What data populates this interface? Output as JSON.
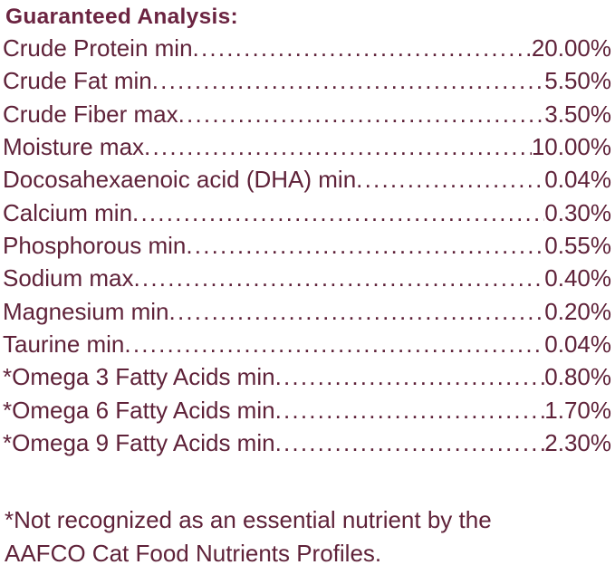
{
  "panel": {
    "title": "Guaranteed Analysis:",
    "text_color": "#5F2239",
    "title_color": "#6B2441",
    "rows": [
      {
        "label": "Crude Protein min",
        "value": "20.00%"
      },
      {
        "label": "Crude Fat min",
        "value": "5.50%"
      },
      {
        "label": "Crude Fiber max",
        "value": "3.50%"
      },
      {
        "label": "Moisture max",
        "value": "10.00%"
      },
      {
        "label": "Docosahexaenoic acid (DHA) min",
        "value": "0.04%"
      },
      {
        "label": "Calcium min",
        "value": "0.30%"
      },
      {
        "label": "Phosphorous min",
        "value": "0.55%"
      },
      {
        "label": "Sodium max",
        "value": "0.40%"
      },
      {
        "label": "Magnesium min",
        "value": "0.20%"
      },
      {
        "label": "Taurine min",
        "value": "0.04%"
      },
      {
        "label": "*Omega 3 Fatty Acids min",
        "value": "0.80%"
      },
      {
        "label": "*Omega 6 Fatty Acids min",
        "value": "1.70%"
      },
      {
        "label": "*Omega 9 Fatty Acids min",
        "value": "2.30%"
      }
    ],
    "footnote_line1": "*Not recognized as an essential nutrient by the",
    "footnote_line2": "AAFCO Cat Food Nutrients Profiles."
  }
}
